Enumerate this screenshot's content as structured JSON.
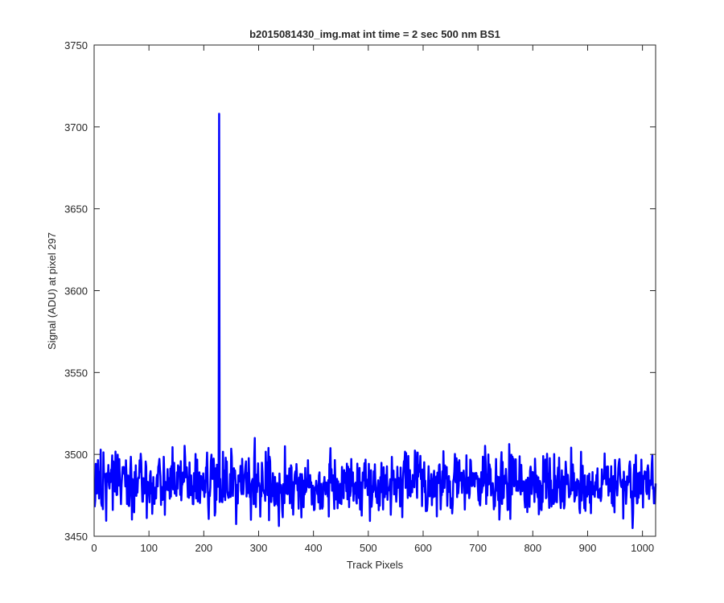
{
  "chart_data": {
    "type": "line",
    "title": "b2015081430_img.mat int time = 2 sec  500 nm BS1",
    "xlabel": "Track Pixels",
    "ylabel": "Signal (ADU) at pixel 297",
    "xlim": [
      0,
      1024
    ],
    "ylim": [
      3450,
      3750
    ],
    "xticks": [
      0,
      100,
      200,
      300,
      400,
      500,
      600,
      700,
      800,
      900,
      1000
    ],
    "yticks": [
      3450,
      3500,
      3550,
      3600,
      3650,
      3700,
      3750
    ],
    "grid": false,
    "series": [
      {
        "color": "#0000ff",
        "line_width": 2.5,
        "baseline_mean": 3482,
        "noise_range": [
          3455,
          3510
        ],
        "peaks": [
          {
            "x": 228,
            "y": 3708
          },
          {
            "x": 293,
            "y": 3510
          },
          {
            "x": 982,
            "y": 3455
          }
        ]
      }
    ]
  }
}
